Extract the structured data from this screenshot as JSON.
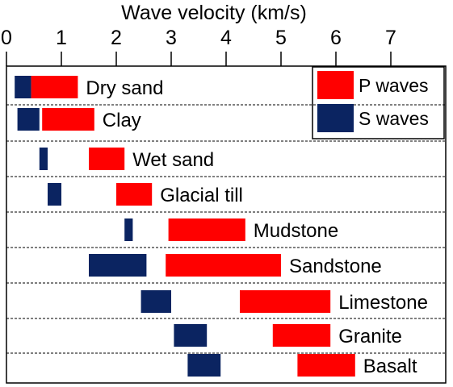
{
  "chart_data": {
    "type": "bar",
    "orientation": "horizontal-range",
    "title": "",
    "xlabel": "Wave velocity (km/s)",
    "xlim": [
      0,
      8
    ],
    "xticks": [
      0,
      1,
      2,
      3,
      4,
      5,
      6,
      7
    ],
    "x_axis_position": "top",
    "grid": false,
    "legend_position": "top-right",
    "categories": [
      "Dry sand",
      "Clay",
      "Wet sand",
      "Glacial till",
      "Mudstone",
      "Sandstone",
      "Limestone",
      "Granite",
      "Basalt"
    ],
    "series": [
      {
        "name": "P waves",
        "color": "#ff0000",
        "ranges": [
          [
            0.45,
            1.3
          ],
          [
            0.65,
            1.6
          ],
          [
            1.5,
            2.15
          ],
          [
            2.0,
            2.65
          ],
          [
            2.95,
            4.35
          ],
          [
            2.9,
            5.0
          ],
          [
            4.25,
            5.9
          ],
          [
            4.85,
            5.9
          ],
          [
            5.3,
            6.35
          ]
        ]
      },
      {
        "name": "S waves",
        "color": "#0b2461",
        "ranges": [
          [
            0.15,
            0.45
          ],
          [
            0.2,
            0.6
          ],
          [
            0.6,
            0.75
          ],
          [
            0.75,
            1.0
          ],
          [
            2.15,
            2.3
          ],
          [
            1.5,
            2.55
          ],
          [
            2.45,
            3.0
          ],
          [
            3.05,
            3.65
          ],
          [
            3.3,
            3.9
          ]
        ]
      }
    ]
  }
}
